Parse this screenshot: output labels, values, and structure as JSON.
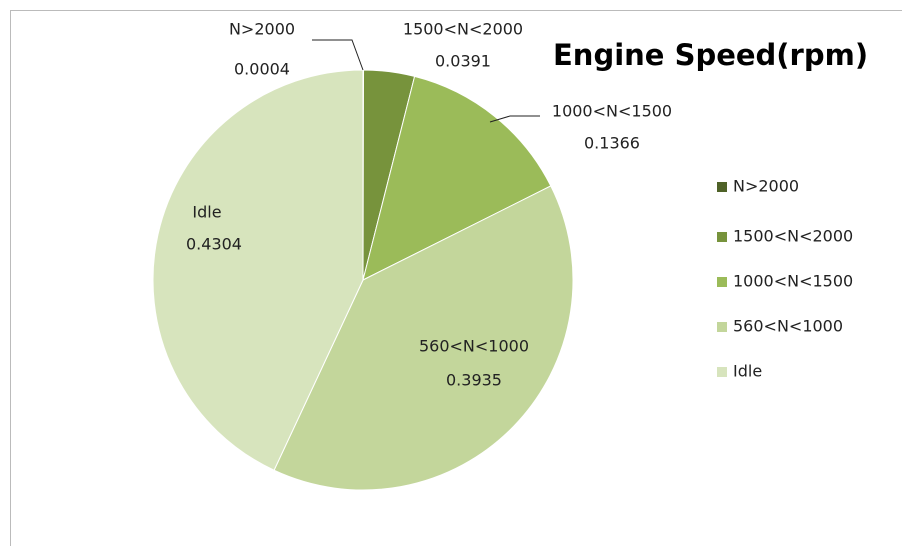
{
  "chart_data": {
    "type": "pie",
    "title": "Engine Speed(rpm)",
    "categories": [
      "N>2000",
      "1500<N<2000",
      "1000<N<1500",
      "560<N<1000",
      "Idle"
    ],
    "values": [
      0.0004,
      0.0391,
      0.1366,
      0.3935,
      0.4304
    ],
    "colors": [
      "#4f6228",
      "#77933c",
      "#9bbb59",
      "#c3d69b",
      "#d7e4bd"
    ],
    "legend": "right"
  }
}
